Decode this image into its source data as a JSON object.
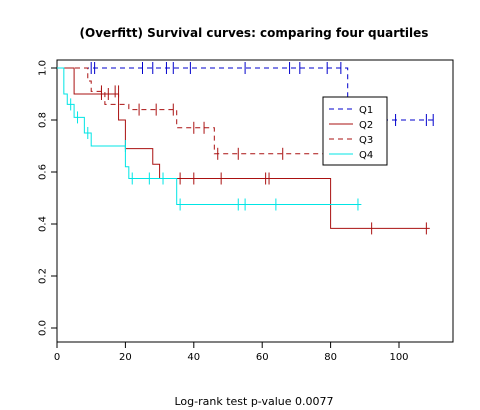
{
  "chart_data": {
    "type": "line",
    "title": "(Overfitt) Survival curves: comparing four quartiles",
    "xlabel": "",
    "ylabel": "",
    "xlim": [
      0,
      115
    ],
    "ylim": [
      0,
      1.05
    ],
    "x_ticks": [
      "0",
      "20",
      "40",
      "60",
      "80",
      "100"
    ],
    "x_tick_values": [
      0,
      20,
      40,
      60,
      80,
      100
    ],
    "y_ticks": [
      "0.0",
      "0.2",
      "0.4",
      "0.6",
      "0.8",
      "1.0"
    ],
    "y_tick_values": [
      0.0,
      0.2,
      0.4,
      0.6,
      0.8,
      1.0
    ],
    "legend_position": "right",
    "series": [
      {
        "name": "Q1",
        "color": "#0000cc",
        "dash": "dashed",
        "steps": [
          [
            0,
            1.0
          ],
          [
            85,
            1.0
          ],
          [
            85,
            0.8
          ],
          [
            111,
            0.8
          ]
        ],
        "censored": [
          [
            10,
            1.0
          ],
          [
            11,
            1.0
          ],
          [
            25,
            1.0
          ],
          [
            28,
            1.0
          ],
          [
            32,
            1.0
          ],
          [
            34,
            1.0
          ],
          [
            39,
            1.0
          ],
          [
            55,
            1.0
          ],
          [
            68,
            1.0
          ],
          [
            71,
            1.0
          ],
          [
            79,
            1.0
          ],
          [
            83,
            1.0
          ],
          [
            99,
            0.8
          ],
          [
            108,
            0.8
          ],
          [
            110,
            0.8
          ]
        ]
      },
      {
        "name": "Q2",
        "color": "#aa1111",
        "dash": "solid",
        "steps": [
          [
            0,
            1.0
          ],
          [
            5,
            1.0
          ],
          [
            5,
            0.9
          ],
          [
            18,
            0.9
          ],
          [
            18,
            0.8
          ],
          [
            20,
            0.8
          ],
          [
            20,
            0.69
          ],
          [
            28,
            0.69
          ],
          [
            28,
            0.63
          ],
          [
            30,
            0.63
          ],
          [
            30,
            0.575
          ],
          [
            80,
            0.575
          ],
          [
            80,
            0.383
          ],
          [
            109,
            0.383
          ]
        ],
        "censored": [
          [
            13,
            0.9
          ],
          [
            15,
            0.9
          ],
          [
            36,
            0.575
          ],
          [
            40,
            0.575
          ],
          [
            48,
            0.575
          ],
          [
            61,
            0.575
          ],
          [
            62,
            0.575
          ],
          [
            92,
            0.383
          ],
          [
            108,
            0.383
          ]
        ]
      },
      {
        "name": "Q3",
        "color": "#aa1111",
        "dash": "dashed",
        "steps": [
          [
            0,
            1.0
          ],
          [
            9,
            1.0
          ],
          [
            9,
            0.95
          ],
          [
            10,
            0.95
          ],
          [
            10,
            0.91
          ],
          [
            14,
            0.91
          ],
          [
            14,
            0.86
          ],
          [
            21,
            0.86
          ],
          [
            21,
            0.84
          ],
          [
            35,
            0.84
          ],
          [
            35,
            0.77
          ],
          [
            46,
            0.77
          ],
          [
            46,
            0.67
          ],
          [
            80,
            0.67
          ]
        ],
        "censored": [
          [
            13,
            0.91
          ],
          [
            17,
            0.91
          ],
          [
            18,
            0.91
          ],
          [
            24,
            0.84
          ],
          [
            29,
            0.84
          ],
          [
            34,
            0.84
          ],
          [
            40,
            0.77
          ],
          [
            43,
            0.77
          ],
          [
            47,
            0.67
          ],
          [
            53,
            0.67
          ],
          [
            66,
            0.67
          ]
        ]
      },
      {
        "name": "Q4",
        "color": "#00e5e5",
        "dash": "solid",
        "steps": [
          [
            0,
            1.0
          ],
          [
            2,
            1.0
          ],
          [
            2,
            0.9
          ],
          [
            3,
            0.9
          ],
          [
            3,
            0.86
          ],
          [
            5,
            0.86
          ],
          [
            5,
            0.81
          ],
          [
            8,
            0.81
          ],
          [
            8,
            0.75
          ],
          [
            10,
            0.75
          ],
          [
            10,
            0.7
          ],
          [
            20,
            0.7
          ],
          [
            20,
            0.62
          ],
          [
            21,
            0.62
          ],
          [
            21,
            0.575
          ],
          [
            35,
            0.575
          ],
          [
            35,
            0.475
          ],
          [
            89,
            0.475
          ]
        ],
        "censored": [
          [
            4,
            0.86
          ],
          [
            6,
            0.81
          ],
          [
            9,
            0.75
          ],
          [
            20,
            0.7
          ],
          [
            22,
            0.575
          ],
          [
            27,
            0.575
          ],
          [
            31,
            0.575
          ],
          [
            36,
            0.475
          ],
          [
            53,
            0.475
          ],
          [
            55,
            0.475
          ],
          [
            64,
            0.475
          ],
          [
            88,
            0.475
          ]
        ]
      }
    ],
    "annotation": "Log-rank test p-value  0.0077"
  }
}
